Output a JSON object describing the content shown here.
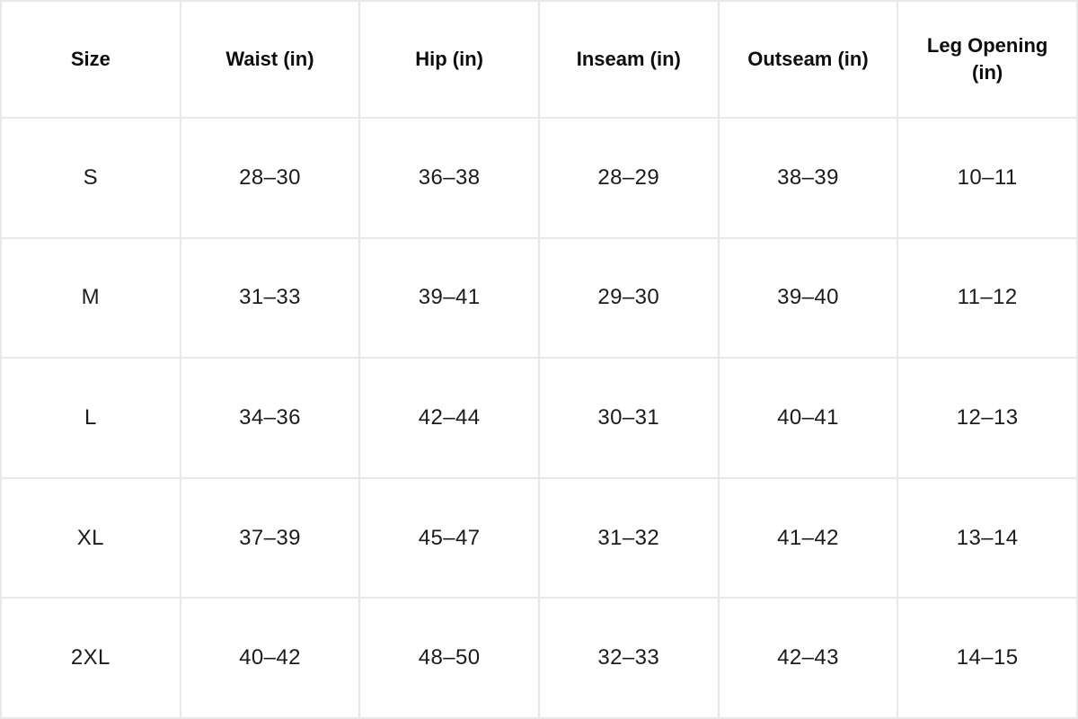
{
  "table": {
    "headers": [
      "Size",
      "Waist (in)",
      "Hip (in)",
      "Inseam (in)",
      "Outseam (in)",
      "Leg Opening (in)"
    ],
    "rows": [
      [
        "S",
        "28–30",
        "36–38",
        "28–29",
        "38–39",
        "10–11"
      ],
      [
        "M",
        "31–33",
        "39–41",
        "29–30",
        "39–40",
        "11–12"
      ],
      [
        "L",
        "34–36",
        "42–44",
        "30–31",
        "40–41",
        "12–13"
      ],
      [
        "XL",
        "37–39",
        "45–47",
        "31–32",
        "41–42",
        "13–14"
      ],
      [
        "2XL",
        "40–42",
        "48–50",
        "32–33",
        "42–43",
        "14–15"
      ]
    ]
  },
  "colors": {
    "background": "#ffffff",
    "grid_border": "#e8e8e8",
    "header_text": "#0d0d0d",
    "body_text": "#1c1c1c"
  }
}
